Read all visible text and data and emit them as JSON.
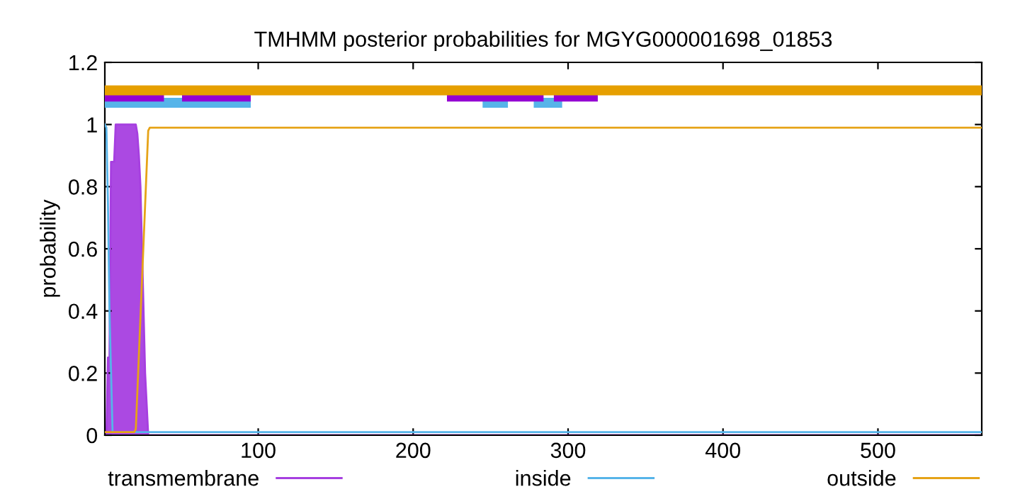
{
  "chart_data": {
    "type": "line",
    "title": "TMHMM posterior probabilities for MGYG000001698_01853",
    "ylabel": "probability",
    "xlim": [
      1,
      567
    ],
    "ylim": [
      0,
      1.2
    ],
    "xticks": [
      100,
      200,
      300,
      400,
      500
    ],
    "yticks": [
      0,
      0.2,
      0.4,
      0.6,
      0.8,
      1,
      1.2
    ],
    "legend": "bottom",
    "grid": false,
    "series": [
      {
        "name": "transmembrane",
        "type": "area",
        "color": "#a63fe0",
        "x": [
          1,
          2,
          3,
          4,
          5,
          7,
          8,
          21,
          22,
          23,
          24,
          25,
          26,
          27,
          28,
          29,
          30,
          567
        ],
        "values": [
          0,
          0,
          0.25,
          0.25,
          0.88,
          0.88,
          1,
          1,
          0.97,
          0.9,
          0.8,
          0.6,
          0.4,
          0.2,
          0.1,
          0,
          0,
          0
        ]
      },
      {
        "name": "inside",
        "color": "#56b4e9",
        "x": [
          1,
          2,
          3,
          4,
          6,
          567
        ],
        "values": [
          1,
          0.99,
          0.75,
          0.4,
          0.01,
          0.01
        ]
      },
      {
        "name": "outside",
        "color": "#e6a317",
        "x": [
          1,
          20,
          21,
          29,
          30,
          567
        ],
        "values": [
          0.01,
          0.01,
          0.02,
          0.98,
          0.99,
          0.99
        ]
      },
      {
        "color": "#56b4e9",
        "x": [
          1,
          92,
          93,
          248,
          258,
          259,
          281,
          293
        ],
        "values": [
          1.07,
          1.07,
          null,
          1.07,
          1.07,
          null,
          1.07,
          1.07
        ]
      },
      {
        "color": "#9400d3",
        "x": [
          3,
          36,
          37,
          54,
          92,
          93,
          225,
          281,
          282,
          294,
          316
        ],
        "values": [
          1.09,
          1.09,
          null,
          1.09,
          1.09,
          null,
          1.09,
          1.09,
          null,
          1.09,
          1.09
        ]
      },
      {
        "color": "#e69f00",
        "x": [
          1,
          567
        ],
        "values": [
          1.11,
          1.11
        ]
      }
    ]
  }
}
